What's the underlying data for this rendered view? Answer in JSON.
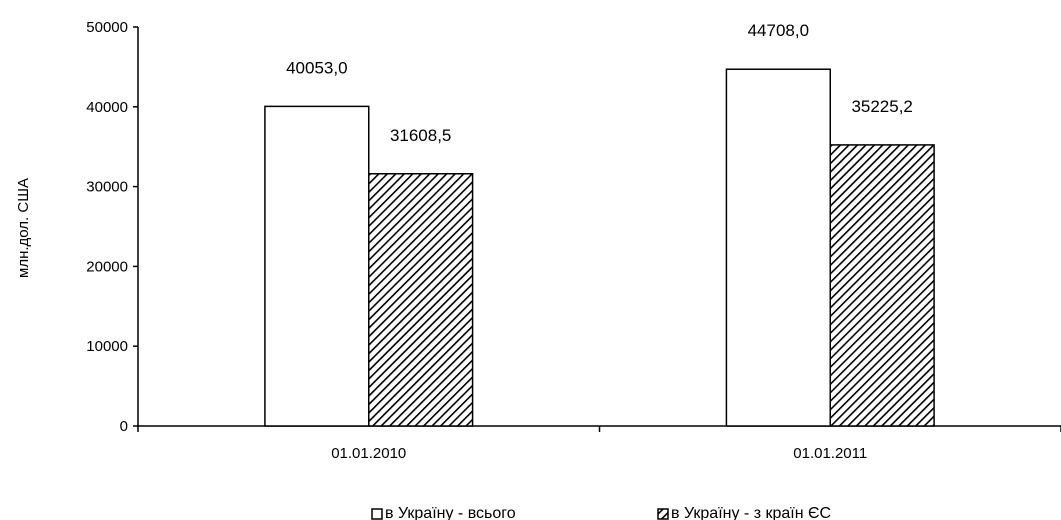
{
  "chart_data": {
    "type": "bar",
    "categories": [
      "01.01.2010",
      "01.01.2011"
    ],
    "series": [
      {
        "name": "в Україну - всього",
        "values": [
          40053.0,
          44708.0
        ],
        "labels": [
          "40053,0",
          "44708,0"
        ],
        "fill": "white"
      },
      {
        "name": "в Україну - з країн ЄС",
        "values": [
          31608.5,
          35225.2
        ],
        "labels": [
          "31608,5",
          "35225,2"
        ],
        "fill": "diagonal-hatch"
      }
    ],
    "title": "",
    "xlabel": "",
    "ylabel": "млн.дол. США",
    "ylim": [
      0,
      50000
    ],
    "yticks": [
      0,
      10000,
      20000,
      30000,
      40000,
      50000
    ],
    "ytick_labels": [
      "0",
      "10000",
      "20000",
      "30000",
      "40000",
      "50000"
    ],
    "grid": false,
    "legend": "bottom"
  },
  "colors": {
    "bar_stroke": "#000000",
    "bar_fill_total": "#ffffff",
    "hatch": "#000000",
    "background": "#ffffff"
  }
}
